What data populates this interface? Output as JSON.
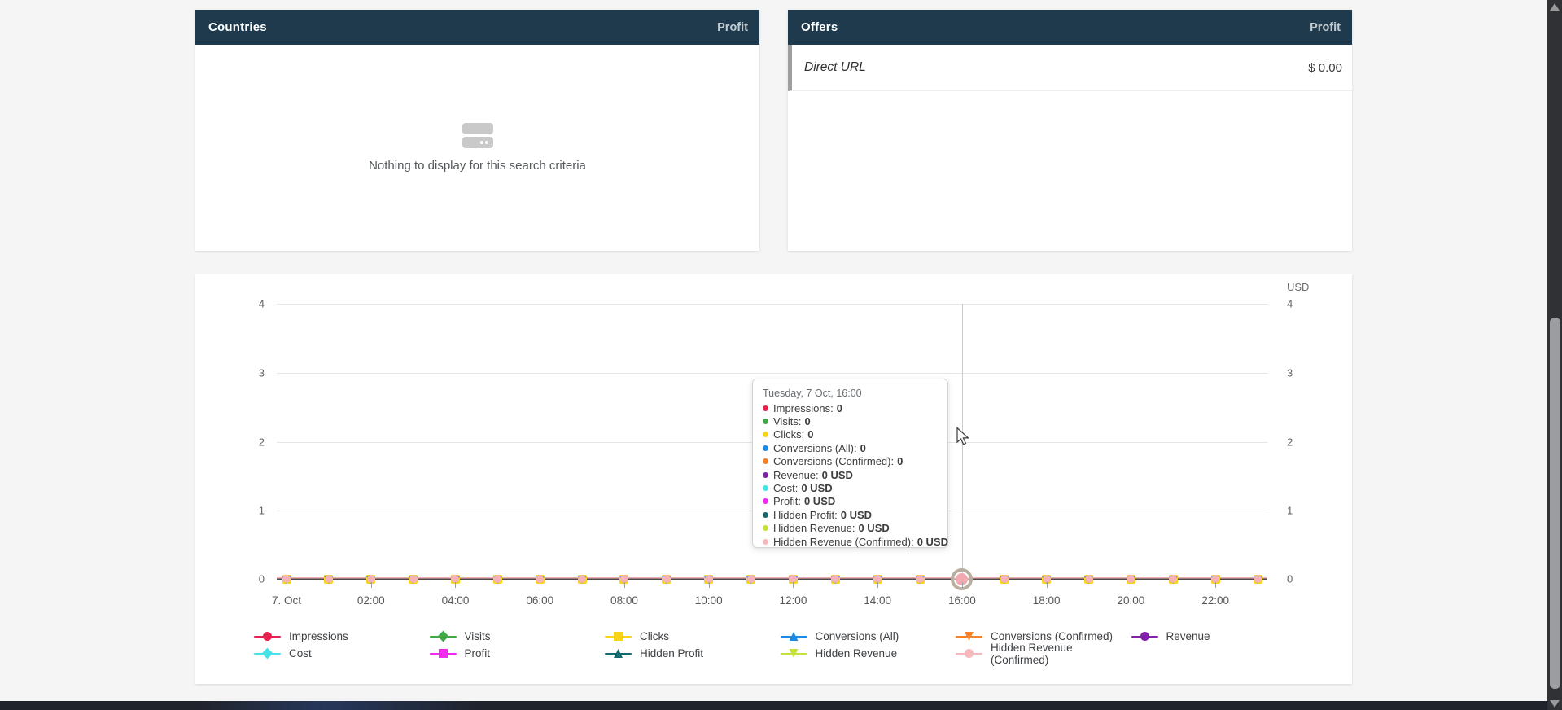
{
  "page": {
    "background_color": "#f5f5f6",
    "header_color": "#1e3a4c"
  },
  "countries_panel": {
    "title": "Countries",
    "metric_label": "Profit",
    "empty_message": "Nothing to display for this search criteria"
  },
  "offers_panel": {
    "title": "Offers",
    "metric_label": "Profit",
    "rows": [
      {
        "name": "Direct URL",
        "profit": "$ 0.00"
      }
    ]
  },
  "chart": {
    "currency_label": "USD",
    "left_axis_ticks": [
      "4",
      "3",
      "2",
      "1",
      "0"
    ],
    "right_axis_ticks": [
      "4",
      "3",
      "2",
      "1",
      "0"
    ],
    "x_axis_labels": [
      "7. Oct",
      "02:00",
      "04:00",
      "06:00",
      "08:00",
      "10:00",
      "12:00",
      "14:00",
      "16:00",
      "18:00",
      "20:00",
      "22:00"
    ],
    "hovered_point_index": 16,
    "tooltip": {
      "title": "Tuesday, 7 Oct, 16:00",
      "rows": [
        {
          "label": "Impressions",
          "value": "0",
          "color": "#e6234e"
        },
        {
          "label": "Visits",
          "value": "0",
          "color": "#3fa845"
        },
        {
          "label": "Clicks",
          "value": "0",
          "color": "#f7d418"
        },
        {
          "label": "Conversions (All)",
          "value": "0",
          "color": "#1e88e5"
        },
        {
          "label": "Conversions (Confirmed)",
          "value": "0",
          "color": "#f5822a"
        },
        {
          "label": "Revenue",
          "value": "0 USD",
          "color": "#8021a7"
        },
        {
          "label": "Cost",
          "value": "0 USD",
          "color": "#45e3e8"
        },
        {
          "label": "Profit",
          "value": "0 USD",
          "color": "#f02af0"
        },
        {
          "label": "Hidden Profit",
          "value": "0 USD",
          "color": "#15696e"
        },
        {
          "label": "Hidden Revenue",
          "value": "0 USD",
          "color": "#c3e23d"
        },
        {
          "label": "Hidden Revenue (Confirmed)",
          "value": "0 USD",
          "color": "#f6b8bd"
        }
      ]
    },
    "legend": [
      {
        "label": "Impressions",
        "color": "#e6234e",
        "shape": "circle"
      },
      {
        "label": "Visits",
        "color": "#3fa845",
        "shape": "diamond"
      },
      {
        "label": "Clicks",
        "color": "#f7d418",
        "shape": "square"
      },
      {
        "label": "Conversions (All)",
        "color": "#1e88e5",
        "shape": "triangle-up"
      },
      {
        "label": "Conversions (Confirmed)",
        "color": "#f5822a",
        "shape": "triangle-down"
      },
      {
        "label": "Revenue",
        "color": "#8021a7",
        "shape": "circle"
      },
      {
        "label": "Cost",
        "color": "#45e3e8",
        "shape": "diamond"
      },
      {
        "label": "Profit",
        "color": "#f02af0",
        "shape": "square"
      },
      {
        "label": "Hidden Profit",
        "color": "#15696e",
        "shape": "triangle-up"
      },
      {
        "label": "Hidden Revenue",
        "color": "#c3e23d",
        "shape": "triangle-down"
      },
      {
        "label": "Hidden Revenue (Confirmed)",
        "color": "#f6b8bd",
        "shape": "circle"
      }
    ]
  },
  "chart_data": {
    "type": "line",
    "title": "",
    "xlabel": "",
    "ylabel": "",
    "ylabel_right": "USD",
    "ylim": [
      0,
      4
    ],
    "y_ticks": [
      0,
      1,
      2,
      3,
      4
    ],
    "grid": true,
    "legend_position": "bottom",
    "x": [
      "00:00",
      "01:00",
      "02:00",
      "03:00",
      "04:00",
      "05:00",
      "06:00",
      "07:00",
      "08:00",
      "09:00",
      "10:00",
      "11:00",
      "12:00",
      "13:00",
      "14:00",
      "15:00",
      "16:00",
      "17:00",
      "18:00",
      "19:00",
      "20:00",
      "21:00",
      "22:00",
      "23:00"
    ],
    "x_date": "7 Oct",
    "series": [
      {
        "name": "Impressions",
        "values": [
          0,
          0,
          0,
          0,
          0,
          0,
          0,
          0,
          0,
          0,
          0,
          0,
          0,
          0,
          0,
          0,
          0,
          0,
          0,
          0,
          0,
          0,
          0,
          0
        ]
      },
      {
        "name": "Visits",
        "values": [
          0,
          0,
          0,
          0,
          0,
          0,
          0,
          0,
          0,
          0,
          0,
          0,
          0,
          0,
          0,
          0,
          0,
          0,
          0,
          0,
          0,
          0,
          0,
          0
        ]
      },
      {
        "name": "Clicks",
        "values": [
          0,
          0,
          0,
          0,
          0,
          0,
          0,
          0,
          0,
          0,
          0,
          0,
          0,
          0,
          0,
          0,
          0,
          0,
          0,
          0,
          0,
          0,
          0,
          0
        ]
      },
      {
        "name": "Conversions (All)",
        "values": [
          0,
          0,
          0,
          0,
          0,
          0,
          0,
          0,
          0,
          0,
          0,
          0,
          0,
          0,
          0,
          0,
          0,
          0,
          0,
          0,
          0,
          0,
          0,
          0
        ]
      },
      {
        "name": "Conversions (Confirmed)",
        "values": [
          0,
          0,
          0,
          0,
          0,
          0,
          0,
          0,
          0,
          0,
          0,
          0,
          0,
          0,
          0,
          0,
          0,
          0,
          0,
          0,
          0,
          0,
          0,
          0
        ]
      },
      {
        "name": "Revenue",
        "values": [
          0,
          0,
          0,
          0,
          0,
          0,
          0,
          0,
          0,
          0,
          0,
          0,
          0,
          0,
          0,
          0,
          0,
          0,
          0,
          0,
          0,
          0,
          0,
          0
        ]
      },
      {
        "name": "Cost",
        "values": [
          0,
          0,
          0,
          0,
          0,
          0,
          0,
          0,
          0,
          0,
          0,
          0,
          0,
          0,
          0,
          0,
          0,
          0,
          0,
          0,
          0,
          0,
          0,
          0
        ]
      },
      {
        "name": "Profit",
        "values": [
          0,
          0,
          0,
          0,
          0,
          0,
          0,
          0,
          0,
          0,
          0,
          0,
          0,
          0,
          0,
          0,
          0,
          0,
          0,
          0,
          0,
          0,
          0,
          0
        ]
      },
      {
        "name": "Hidden Profit",
        "values": [
          0,
          0,
          0,
          0,
          0,
          0,
          0,
          0,
          0,
          0,
          0,
          0,
          0,
          0,
          0,
          0,
          0,
          0,
          0,
          0,
          0,
          0,
          0,
          0
        ]
      },
      {
        "name": "Hidden Revenue",
        "values": [
          0,
          0,
          0,
          0,
          0,
          0,
          0,
          0,
          0,
          0,
          0,
          0,
          0,
          0,
          0,
          0,
          0,
          0,
          0,
          0,
          0,
          0,
          0,
          0
        ]
      },
      {
        "name": "Hidden Revenue (Confirmed)",
        "values": [
          0,
          0,
          0,
          0,
          0,
          0,
          0,
          0,
          0,
          0,
          0,
          0,
          0,
          0,
          0,
          0,
          0,
          0,
          0,
          0,
          0,
          0,
          0,
          0
        ]
      }
    ]
  }
}
